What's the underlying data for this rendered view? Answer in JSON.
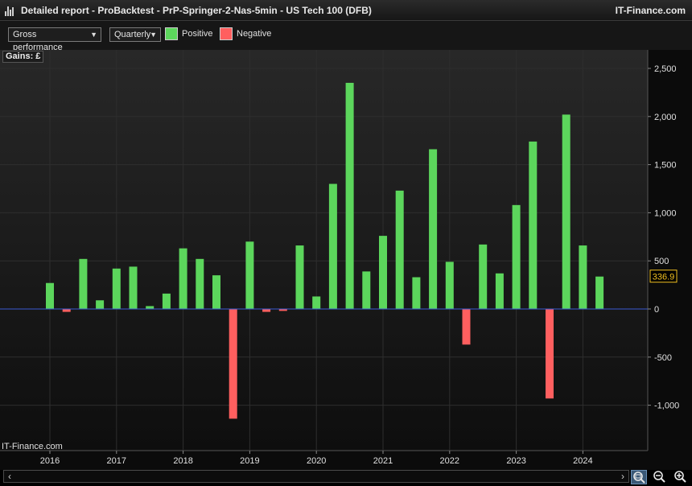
{
  "window": {
    "title": "Detailed report - ProBacktest - PrP-Springer-2-Nas-5min - US Tech 100 (DFB)",
    "brand": "IT-Finance.com"
  },
  "toolbar": {
    "metric_select": "Gross performance",
    "period_select": "Quarterly",
    "legend_positive": "Positive",
    "legend_negative": "Negative"
  },
  "colors": {
    "positive": "#5cd65c",
    "negative": "#ff5f5f",
    "zero_line": "#3a5ad0",
    "grid": "#2e2e2e",
    "plot_bg_top": "#282828",
    "plot_bg_bottom": "#101010",
    "last_value_badge": "#f0c020"
  },
  "chart_data": {
    "type": "bar",
    "ylabel": "Gains: £",
    "ylim": [
      -1400,
      2500
    ],
    "y_ticks": [
      {
        "value": 2500,
        "label": "2,500"
      },
      {
        "value": 2000,
        "label": "2,000"
      },
      {
        "value": 1500,
        "label": "1,500"
      },
      {
        "value": 1000,
        "label": "1,000"
      },
      {
        "value": 500,
        "label": "500"
      },
      {
        "value": 0,
        "label": "0"
      },
      {
        "value": -500,
        "label": "-500"
      },
      {
        "value": -1000,
        "label": "-1,000"
      }
    ],
    "x_ticks": [
      "2016",
      "2017",
      "2018",
      "2019",
      "2020",
      "2021",
      "2022",
      "2023",
      "2024"
    ],
    "start_year": 2016,
    "categories": [
      "2016 Q1",
      "2016 Q2",
      "2016 Q3",
      "2016 Q4",
      "2017 Q1",
      "2017 Q2",
      "2017 Q3",
      "2017 Q4",
      "2018 Q1",
      "2018 Q2",
      "2018 Q3",
      "2018 Q4",
      "2019 Q1",
      "2019 Q2",
      "2019 Q3",
      "2019 Q4",
      "2020 Q1",
      "2020 Q2",
      "2020 Q3",
      "2020 Q4",
      "2021 Q1",
      "2021 Q2",
      "2021 Q3",
      "2021 Q4",
      "2022 Q1",
      "2022 Q2",
      "2022 Q3",
      "2022 Q4",
      "2023 Q1",
      "2023 Q2",
      "2023 Q3",
      "2023 Q4",
      "2024 Q1",
      "2024 Q2"
    ],
    "values": [
      270,
      -30,
      520,
      90,
      420,
      440,
      30,
      160,
      630,
      520,
      350,
      -1140,
      700,
      -30,
      -20,
      660,
      130,
      1300,
      2350,
      390,
      760,
      1230,
      330,
      1660,
      490,
      -370,
      670,
      370,
      1080,
      1740,
      -930,
      2020,
      660,
      337
    ],
    "last_value_label": "336.9",
    "grid": true,
    "legend": "top-left"
  },
  "scrollbar": {
    "left_arrow": "‹",
    "right_arrow": "›"
  },
  "icons": {
    "zoom_fit": "zoom-fit-icon",
    "zoom_out": "zoom-out-icon",
    "zoom_in": "zoom-in-icon"
  }
}
